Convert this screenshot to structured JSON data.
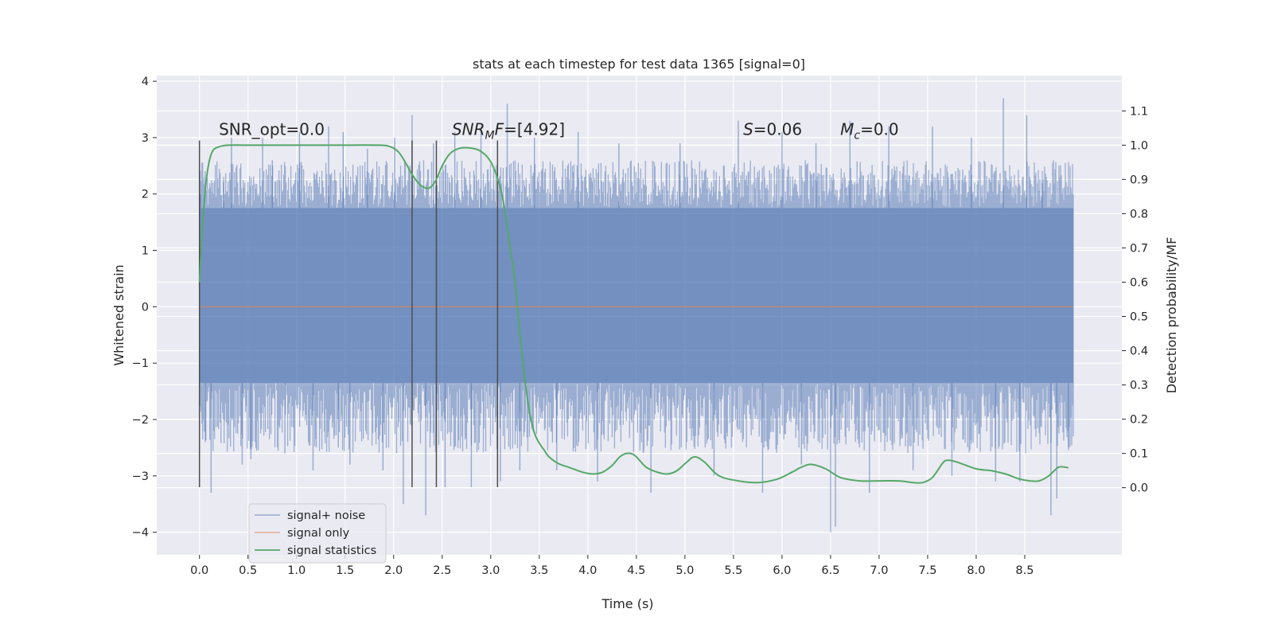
{
  "chart_data": {
    "type": "line",
    "title": "stats at each timestep for test data 1365 [signal=0]",
    "xlabel": "Time (s)",
    "ylabel": "Whitened strain",
    "y2label": "Detection probability/MF",
    "xlim": [
      -0.44,
      9.5
    ],
    "ylim": [
      -4.4,
      4.1
    ],
    "y2lim": [
      -0.196,
      1.203
    ],
    "x_ticks": [
      0.0,
      0.5,
      1.0,
      1.5,
      2.0,
      2.5,
      3.0,
      3.5,
      4.0,
      4.5,
      5.0,
      5.5,
      6.0,
      6.5,
      7.0,
      7.5,
      8.0,
      8.5
    ],
    "x_tick_labels": [
      "0.0",
      "0.5",
      "1.0",
      "1.5",
      "2.0",
      "2.5",
      "3.0",
      "3.5",
      "4.0",
      "4.5",
      "5.0",
      "5.5",
      "6.0",
      "6.5",
      "7.0",
      "7.5",
      "8.0",
      "8.5"
    ],
    "y_ticks": [
      -4,
      -3,
      -2,
      -1,
      0,
      1,
      2,
      3,
      4
    ],
    "y_tick_labels": [
      "−4",
      "−3",
      "−2",
      "−1",
      "0",
      "1",
      "2",
      "3",
      "4"
    ],
    "y2_ticks": [
      0.0,
      0.1,
      0.2,
      0.3,
      0.4,
      0.5,
      0.6,
      0.7,
      0.8,
      0.9,
      1.0,
      1.1
    ],
    "y2_tick_labels": [
      "0.0",
      "0.1",
      "0.2",
      "0.3",
      "0.4",
      "0.5",
      "0.6",
      "0.7",
      "0.8",
      "0.9",
      "1.0",
      "1.1"
    ],
    "grid": true,
    "legend_position": "lower-left",
    "colors": {
      "background": "#eaeaf2",
      "noise": "#4c72b0",
      "signal": "#dd8452",
      "statistics": "#55a868",
      "vline": "#4d4d4d"
    },
    "series": [
      {
        "name": "signal+ noise",
        "axis": "left",
        "style": "dense-noise",
        "x_range": [
          0.0,
          9.0
        ],
        "core_band": [
          -1.35,
          1.75
        ],
        "envelope_band": [
          -2.6,
          2.6
        ],
        "spikes": [
          {
            "x": 0.01,
            "y": 2.0
          },
          {
            "x": 0.06,
            "y": -2.4
          },
          {
            "x": 0.12,
            "y": -3.3
          },
          {
            "x": 0.25,
            "y": 2.3
          },
          {
            "x": 0.33,
            "y": 3.0
          },
          {
            "x": 0.44,
            "y": -2.8
          },
          {
            "x": 0.53,
            "y": -2.7
          },
          {
            "x": 0.65,
            "y": 3.0
          },
          {
            "x": 0.75,
            "y": 2.6
          },
          {
            "x": 0.88,
            "y": -2.6
          },
          {
            "x": 1.03,
            "y": 3.1
          },
          {
            "x": 1.17,
            "y": -2.9
          },
          {
            "x": 1.33,
            "y": 3.2
          },
          {
            "x": 1.43,
            "y": -2.5
          },
          {
            "x": 1.48,
            "y": 3.1
          },
          {
            "x": 1.55,
            "y": -2.8
          },
          {
            "x": 1.73,
            "y": 2.8
          },
          {
            "x": 1.89,
            "y": -2.9
          },
          {
            "x": 2.01,
            "y": 3.0
          },
          {
            "x": 2.1,
            "y": -3.5
          },
          {
            "x": 2.19,
            "y": 3.4
          },
          {
            "x": 2.33,
            "y": -3.7
          },
          {
            "x": 2.41,
            "y": 2.9
          },
          {
            "x": 2.53,
            "y": -3.2
          },
          {
            "x": 2.63,
            "y": 3.1
          },
          {
            "x": 2.8,
            "y": -3.2
          },
          {
            "x": 2.9,
            "y": 3.2
          },
          {
            "x": 3.1,
            "y": -3.1
          },
          {
            "x": 3.17,
            "y": 3.6
          },
          {
            "x": 3.3,
            "y": -2.9
          },
          {
            "x": 3.45,
            "y": 3.0
          },
          {
            "x": 3.68,
            "y": -2.9
          },
          {
            "x": 3.9,
            "y": 3.1
          },
          {
            "x": 4.1,
            "y": -3.1
          },
          {
            "x": 4.32,
            "y": 2.9
          },
          {
            "x": 4.65,
            "y": -3.3
          },
          {
            "x": 4.95,
            "y": 2.9
          },
          {
            "x": 5.3,
            "y": -3.0
          },
          {
            "x": 5.55,
            "y": 3.3
          },
          {
            "x": 5.8,
            "y": -3.3
          },
          {
            "x": 6.0,
            "y": 3.1
          },
          {
            "x": 6.2,
            "y": -2.8
          },
          {
            "x": 6.35,
            "y": 2.9
          },
          {
            "x": 6.5,
            "y": -4.0
          },
          {
            "x": 6.55,
            "y": -3.9
          },
          {
            "x": 6.7,
            "y": 3.3
          },
          {
            "x": 6.9,
            "y": -3.3
          },
          {
            "x": 7.1,
            "y": 3.2
          },
          {
            "x": 7.35,
            "y": -2.9
          },
          {
            "x": 7.55,
            "y": 3.2
          },
          {
            "x": 7.75,
            "y": -3.0
          },
          {
            "x": 7.95,
            "y": 3.0
          },
          {
            "x": 8.2,
            "y": -3.1
          },
          {
            "x": 8.28,
            "y": 3.7
          },
          {
            "x": 8.45,
            "y": -3.1
          },
          {
            "x": 8.52,
            "y": 3.4
          },
          {
            "x": 8.68,
            "y": 2.2
          },
          {
            "x": 8.77,
            "y": -3.7
          },
          {
            "x": 8.83,
            "y": -3.4
          },
          {
            "x": 8.95,
            "y": -2.5
          }
        ]
      },
      {
        "name": "signal only",
        "axis": "left",
        "x": [
          0.0,
          9.0
        ],
        "y": [
          0.0,
          0.0
        ]
      },
      {
        "name": "signal statistics",
        "axis": "right",
        "x": [
          0.0,
          0.04,
          0.08,
          0.13,
          0.2,
          0.3,
          0.5,
          1.0,
          1.5,
          1.85,
          1.97,
          2.05,
          2.12,
          2.2,
          2.27,
          2.33,
          2.38,
          2.44,
          2.5,
          2.58,
          2.67,
          2.78,
          2.88,
          2.98,
          3.05,
          3.12,
          3.18,
          3.25,
          3.3,
          3.35,
          3.4,
          3.45,
          3.5,
          3.55,
          3.6,
          3.7,
          3.8,
          3.95,
          4.05,
          4.15,
          4.25,
          4.33,
          4.4,
          4.48,
          4.6,
          4.72,
          4.82,
          4.92,
          5.02,
          5.1,
          5.2,
          5.35,
          5.55,
          5.75,
          5.95,
          6.1,
          6.2,
          6.3,
          6.45,
          6.6,
          6.8,
          7.0,
          7.2,
          7.35,
          7.45,
          7.55,
          7.65,
          7.7,
          7.8,
          8.0,
          8.15,
          8.3,
          8.45,
          8.55,
          8.65,
          8.75,
          8.85,
          8.95
        ],
        "y": [
          0.6,
          0.8,
          0.92,
          0.98,
          0.995,
          1.0,
          1.0,
          1.0,
          1.0,
          1.0,
          0.995,
          0.98,
          0.95,
          0.91,
          0.885,
          0.875,
          0.877,
          0.9,
          0.94,
          0.975,
          0.99,
          0.992,
          0.985,
          0.96,
          0.92,
          0.85,
          0.74,
          0.6,
          0.45,
          0.32,
          0.22,
          0.16,
          0.13,
          0.11,
          0.09,
          0.07,
          0.06,
          0.045,
          0.04,
          0.045,
          0.065,
          0.09,
          0.1,
          0.095,
          0.06,
          0.045,
          0.04,
          0.05,
          0.075,
          0.09,
          0.075,
          0.035,
          0.02,
          0.015,
          0.025,
          0.045,
          0.06,
          0.068,
          0.055,
          0.03,
          0.02,
          0.02,
          0.02,
          0.015,
          0.015,
          0.03,
          0.07,
          0.08,
          0.075,
          0.055,
          0.05,
          0.04,
          0.025,
          0.02,
          0.02,
          0.035,
          0.06,
          0.058
        ]
      }
    ],
    "vertical_lines": [
      {
        "x": 0.0,
        "y_range": [
          -3.2,
          2.95
        ]
      },
      {
        "x": 2.19,
        "y_range": [
          -3.2,
          2.95
        ]
      },
      {
        "x": 2.44,
        "y_range": [
          -3.2,
          2.95
        ]
      },
      {
        "x": 3.07,
        "y_range": [
          -3.2,
          2.95
        ]
      }
    ],
    "annotations": [
      {
        "type": "plain",
        "text": "SNR_opt=0.0",
        "x": 0.2,
        "y": 3.05
      },
      {
        "type": "math",
        "main": "SNR",
        "sub": "M",
        "tail": "F",
        "rest": "=[4.92]",
        "x": 2.6,
        "y": 3.05
      },
      {
        "type": "math",
        "main": "S",
        "sub": "",
        "tail": "",
        "rest": "=0.06",
        "x": 5.6,
        "y": 3.05
      },
      {
        "type": "math",
        "main": "M",
        "sub": "c",
        "tail": "",
        "rest": "=0.0",
        "x": 6.6,
        "y": 3.05
      }
    ],
    "legend": [
      {
        "label": "signal+ noise",
        "color": "#4c72b0",
        "opacity": 0.55
      },
      {
        "label": "signal only",
        "color": "#dd8452",
        "opacity": 0.6
      },
      {
        "label": "signal statistics",
        "color": "#55a868",
        "opacity": 1
      }
    ]
  }
}
